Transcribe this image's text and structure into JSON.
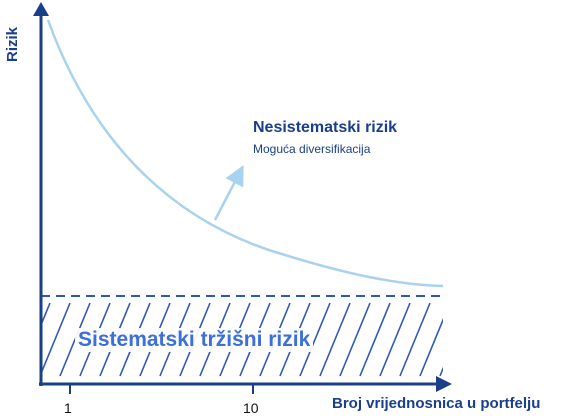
{
  "axes": {
    "y_label": "Rizik",
    "x_label": "Broj vrijednosnica u portfelju",
    "x_ticks": [
      "1",
      "10"
    ]
  },
  "unsystematic": {
    "title": "Nesistematski rizik",
    "subtitle": "Moguća diversifikacija"
  },
  "systematic": {
    "label": "Sistematski tržišni rizik"
  },
  "colors": {
    "axis": "#1a3f8a",
    "curve": "#a9d2ef",
    "dashed_line": "#2e58b8",
    "hatch": "#2e58b8",
    "systematic_text": "#3b6fd9"
  }
}
